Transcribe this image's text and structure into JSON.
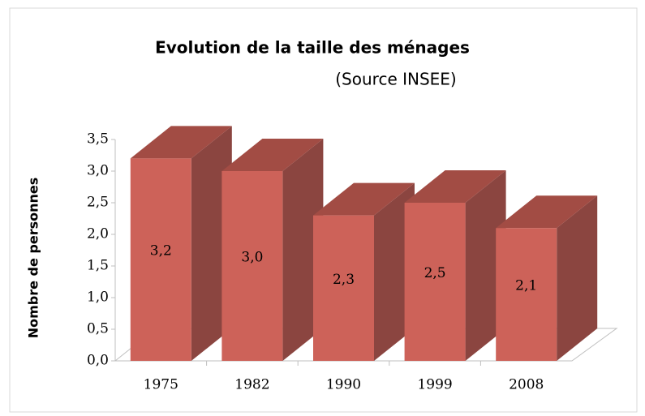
{
  "chart_data": {
    "type": "bar3d",
    "title": "Evolution de la taille des ménages",
    "subtitle": "(Source INSEE)",
    "y_label": "Nombre de personnes",
    "categories": [
      "1975",
      "1982",
      "1990",
      "1999",
      "2008"
    ],
    "values": [
      3.2,
      3.0,
      2.3,
      2.5,
      2.1
    ],
    "value_labels": [
      "3,2",
      "3,0",
      "2,3",
      "2,5",
      "2,1"
    ],
    "color": "#cd6259",
    "ylim": [
      0,
      3.5
    ],
    "yticks": [
      {
        "value": 0,
        "label": "0,0"
      },
      {
        "value": 0.5,
        "label": "0,5"
      },
      {
        "value": 1,
        "label": "1,0"
      },
      {
        "value": 1.5,
        "label": "1,5"
      },
      {
        "value": 2,
        "label": "2,0"
      },
      {
        "value": 2.5,
        "label": "2,5"
      },
      {
        "value": 3,
        "label": "3,0"
      },
      {
        "value": 3.5,
        "label": "3,5"
      }
    ],
    "grid": false
  }
}
